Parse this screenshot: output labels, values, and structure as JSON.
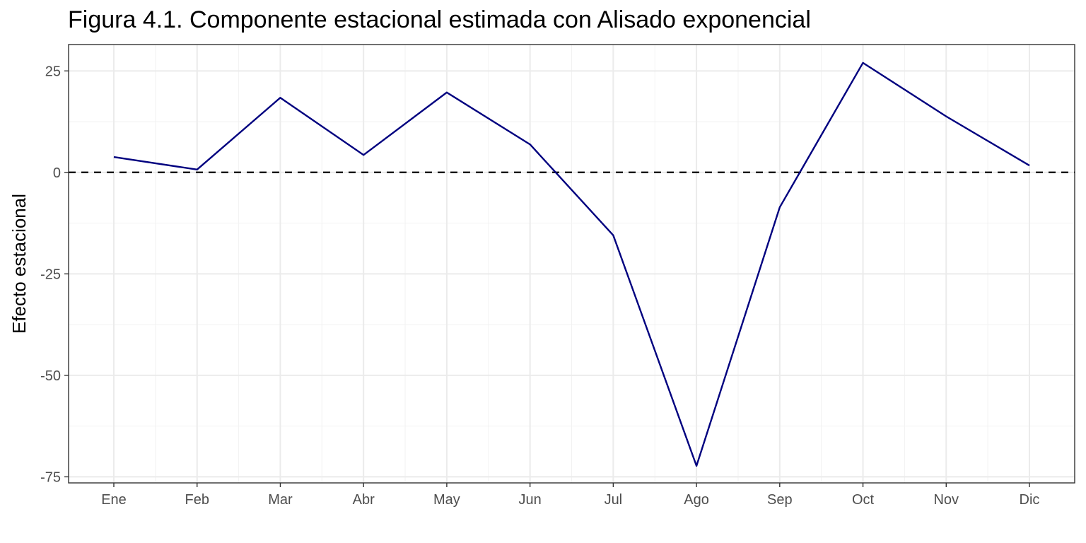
{
  "chart_data": {
    "type": "line",
    "title": "Figura 4.1. Componente estacional estimada con Alisado exponencial",
    "xlabel": "",
    "ylabel": "Efecto estacional",
    "categories": [
      "Ene",
      "Feb",
      "Mar",
      "Abr",
      "May",
      "Jun",
      "Jul",
      "Ago",
      "Sep",
      "Oct",
      "Nov",
      "Dic"
    ],
    "series": [
      {
        "values": [
          3.8,
          0.7,
          18.4,
          4.3,
          19.7,
          6.9,
          -15.5,
          -72.3,
          -8.6,
          27.0,
          13.8,
          1.7
        ],
        "color": "#00007F"
      }
    ],
    "yticks": [
      25,
      0,
      -25,
      -50,
      -75
    ],
    "ylim": [
      -76.5,
      31.5
    ],
    "reference_line": {
      "y": 0,
      "style": "dashed",
      "color": "#000000"
    },
    "grid": true,
    "legend": "none"
  }
}
